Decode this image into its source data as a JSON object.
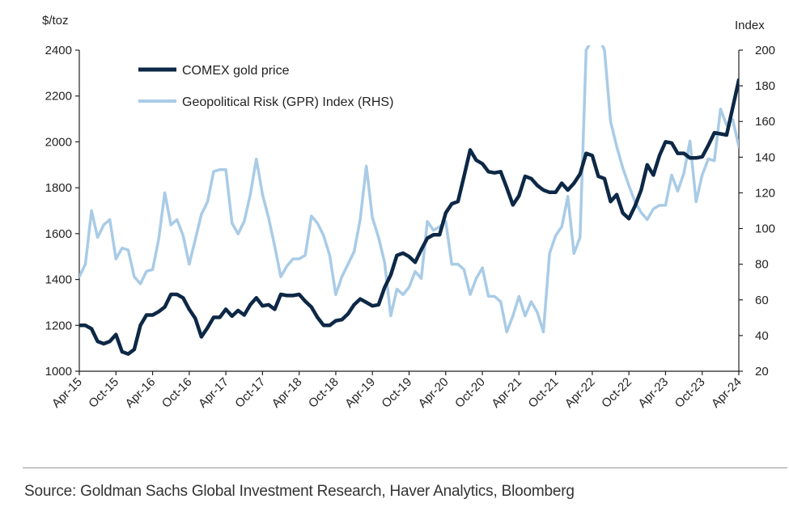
{
  "chart_data": {
    "type": "line",
    "left_axis": {
      "unit_label": "$/toz",
      "min": 1000,
      "max": 2400,
      "ticks": [
        1000,
        1200,
        1400,
        1600,
        1800,
        2000,
        2200,
        2400
      ]
    },
    "right_axis": {
      "unit_label": "Index",
      "min": 20,
      "max": 200,
      "ticks": [
        20,
        40,
        60,
        80,
        100,
        120,
        140,
        160,
        180,
        200
      ]
    },
    "x_range": [
      "2015-04",
      "2024-04"
    ],
    "x_tick_labels": [
      "Apr-15",
      "Oct-15",
      "Apr-16",
      "Oct-16",
      "Apr-17",
      "Oct-17",
      "Apr-18",
      "Oct-18",
      "Apr-19",
      "Oct-19",
      "Apr-20",
      "Oct-20",
      "Apr-21",
      "Oct-21",
      "Apr-22",
      "Oct-22",
      "Apr-23",
      "Oct-23",
      "Apr-24"
    ],
    "legend_position": "top-left",
    "grid": false,
    "series": [
      {
        "name": "COMEX gold price",
        "axis": "left",
        "color": "#0d2846",
        "points": [
          [
            "2015-04",
            1200
          ],
          [
            "2015-05",
            1200
          ],
          [
            "2015-06",
            1185
          ],
          [
            "2015-07",
            1130
          ],
          [
            "2015-08",
            1120
          ],
          [
            "2015-09",
            1130
          ],
          [
            "2015-10",
            1160
          ],
          [
            "2015-11",
            1085
          ],
          [
            "2015-12",
            1075
          ],
          [
            "2016-01",
            1095
          ],
          [
            "2016-02",
            1200
          ],
          [
            "2016-03",
            1245
          ],
          [
            "2016-04",
            1245
          ],
          [
            "2016-05",
            1260
          ],
          [
            "2016-06",
            1280
          ],
          [
            "2016-07",
            1335
          ],
          [
            "2016-08",
            1335
          ],
          [
            "2016-09",
            1320
          ],
          [
            "2016-10",
            1270
          ],
          [
            "2016-11",
            1230
          ],
          [
            "2016-12",
            1150
          ],
          [
            "2017-01",
            1190
          ],
          [
            "2017-02",
            1235
          ],
          [
            "2017-03",
            1235
          ],
          [
            "2017-04",
            1270
          ],
          [
            "2017-05",
            1240
          ],
          [
            "2017-06",
            1265
          ],
          [
            "2017-07",
            1245
          ],
          [
            "2017-08",
            1290
          ],
          [
            "2017-09",
            1320
          ],
          [
            "2017-10",
            1285
          ],
          [
            "2017-11",
            1290
          ],
          [
            "2017-12",
            1270
          ],
          [
            "2018-01",
            1335
          ],
          [
            "2018-02",
            1330
          ],
          [
            "2018-03",
            1330
          ],
          [
            "2018-04",
            1335
          ],
          [
            "2018-05",
            1305
          ],
          [
            "2018-06",
            1280
          ],
          [
            "2018-07",
            1235
          ],
          [
            "2018-08",
            1200
          ],
          [
            "2018-09",
            1200
          ],
          [
            "2018-10",
            1220
          ],
          [
            "2018-11",
            1225
          ],
          [
            "2018-12",
            1250
          ],
          [
            "2019-01",
            1290
          ],
          [
            "2019-02",
            1315
          ],
          [
            "2019-03",
            1300
          ],
          [
            "2019-04",
            1285
          ],
          [
            "2019-05",
            1290
          ],
          [
            "2019-06",
            1365
          ],
          [
            "2019-07",
            1420
          ],
          [
            "2019-08",
            1505
          ],
          [
            "2019-09",
            1515
          ],
          [
            "2019-10",
            1500
          ],
          [
            "2019-11",
            1475
          ],
          [
            "2019-12",
            1530
          ],
          [
            "2020-01",
            1580
          ],
          [
            "2020-02",
            1595
          ],
          [
            "2020-03",
            1595
          ],
          [
            "2020-04",
            1690
          ],
          [
            "2020-05",
            1730
          ],
          [
            "2020-06",
            1740
          ],
          [
            "2020-07",
            1850
          ],
          [
            "2020-08",
            1965
          ],
          [
            "2020-09",
            1920
          ],
          [
            "2020-10",
            1905
          ],
          [
            "2020-11",
            1870
          ],
          [
            "2020-12",
            1865
          ],
          [
            "2021-01",
            1870
          ],
          [
            "2021-02",
            1800
          ],
          [
            "2021-03",
            1725
          ],
          [
            "2021-04",
            1765
          ],
          [
            "2021-05",
            1850
          ],
          [
            "2021-06",
            1840
          ],
          [
            "2021-07",
            1810
          ],
          [
            "2021-08",
            1790
          ],
          [
            "2021-09",
            1780
          ],
          [
            "2021-10",
            1780
          ],
          [
            "2021-11",
            1820
          ],
          [
            "2021-12",
            1790
          ],
          [
            "2022-01",
            1820
          ],
          [
            "2022-02",
            1860
          ],
          [
            "2022-03",
            1950
          ],
          [
            "2022-04",
            1940
          ],
          [
            "2022-05",
            1850
          ],
          [
            "2022-06",
            1840
          ],
          [
            "2022-07",
            1740
          ],
          [
            "2022-08",
            1770
          ],
          [
            "2022-09",
            1690
          ],
          [
            "2022-10",
            1665
          ],
          [
            "2022-11",
            1720
          ],
          [
            "2022-12",
            1790
          ],
          [
            "2023-01",
            1900
          ],
          [
            "2023-02",
            1855
          ],
          [
            "2023-03",
            1940
          ],
          [
            "2023-04",
            2000
          ],
          [
            "2023-05",
            1995
          ],
          [
            "2023-06",
            1950
          ],
          [
            "2023-07",
            1950
          ],
          [
            "2023-08",
            1930
          ],
          [
            "2023-09",
            1930
          ],
          [
            "2023-10",
            1935
          ],
          [
            "2023-11",
            1985
          ],
          [
            "2023-12",
            2040
          ],
          [
            "2024-01",
            2035
          ],
          [
            "2024-02",
            2030
          ],
          [
            "2024-03",
            2150
          ],
          [
            "2024-04",
            2270
          ]
        ]
      },
      {
        "name": "Geopolitical Risk (GPR) Index (RHS)",
        "axis": "right",
        "color": "#a9cbe6",
        "points": [
          [
            "2015-04",
            73
          ],
          [
            "2015-05",
            80
          ],
          [
            "2015-06",
            110
          ],
          [
            "2015-07",
            95
          ],
          [
            "2015-08",
            102
          ],
          [
            "2015-09",
            105
          ],
          [
            "2015-10",
            83
          ],
          [
            "2015-11",
            89
          ],
          [
            "2015-12",
            88
          ],
          [
            "2016-01",
            73
          ],
          [
            "2016-02",
            69
          ],
          [
            "2016-03",
            76
          ],
          [
            "2016-04",
            77
          ],
          [
            "2016-05",
            94
          ],
          [
            "2016-06",
            120
          ],
          [
            "2016-07",
            102
          ],
          [
            "2016-08",
            105
          ],
          [
            "2016-09",
            96
          ],
          [
            "2016-10",
            80
          ],
          [
            "2016-11",
            94
          ],
          [
            "2016-12",
            108
          ],
          [
            "2017-01",
            115
          ],
          [
            "2017-02",
            132
          ],
          [
            "2017-03",
            133
          ],
          [
            "2017-04",
            133
          ],
          [
            "2017-05",
            103
          ],
          [
            "2017-06",
            97
          ],
          [
            "2017-07",
            104
          ],
          [
            "2017-08",
            119
          ],
          [
            "2017-09",
            139
          ],
          [
            "2017-10",
            119
          ],
          [
            "2017-11",
            106
          ],
          [
            "2017-12",
            90
          ],
          [
            "2018-01",
            73
          ],
          [
            "2018-02",
            79
          ],
          [
            "2018-03",
            83
          ],
          [
            "2018-04",
            83
          ],
          [
            "2018-05",
            85
          ],
          [
            "2018-06",
            107
          ],
          [
            "2018-07",
            103
          ],
          [
            "2018-08",
            96
          ],
          [
            "2018-09",
            85
          ],
          [
            "2018-10",
            63
          ],
          [
            "2018-11",
            73
          ],
          [
            "2018-12",
            80
          ],
          [
            "2019-01",
            87
          ],
          [
            "2019-02",
            105
          ],
          [
            "2019-03",
            135
          ],
          [
            "2019-04",
            106
          ],
          [
            "2019-05",
            95
          ],
          [
            "2019-06",
            81
          ],
          [
            "2019-07",
            51
          ],
          [
            "2019-08",
            66
          ],
          [
            "2019-09",
            63
          ],
          [
            "2019-10",
            67
          ],
          [
            "2019-11",
            76
          ],
          [
            "2019-12",
            72
          ],
          [
            "2020-01",
            104
          ],
          [
            "2020-02",
            99
          ],
          [
            "2020-03",
            101
          ],
          [
            "2020-04",
            104
          ],
          [
            "2020-05",
            80
          ],
          [
            "2020-06",
            80
          ],
          [
            "2020-07",
            77
          ],
          [
            "2020-08",
            63
          ],
          [
            "2020-09",
            72
          ],
          [
            "2020-10",
            78
          ],
          [
            "2020-11",
            62
          ],
          [
            "2020-12",
            62
          ],
          [
            "2021-01",
            59
          ],
          [
            "2021-02",
            42
          ],
          [
            "2021-03",
            51
          ],
          [
            "2021-04",
            62
          ],
          [
            "2021-05",
            51
          ],
          [
            "2021-06",
            59
          ],
          [
            "2021-07",
            53
          ],
          [
            "2021-08",
            42
          ],
          [
            "2021-09",
            86
          ],
          [
            "2021-10",
            96
          ],
          [
            "2021-11",
            101
          ],
          [
            "2021-12",
            118
          ],
          [
            "2022-01",
            86
          ],
          [
            "2022-02",
            95
          ],
          [
            "2022-03",
            200
          ],
          [
            "2022-04",
            206
          ],
          [
            "2022-05",
            208
          ],
          [
            "2022-06",
            200
          ],
          [
            "2022-07",
            160
          ],
          [
            "2022-08",
            146
          ],
          [
            "2022-09",
            134
          ],
          [
            "2022-10",
            124
          ],
          [
            "2022-11",
            115
          ],
          [
            "2022-12",
            109
          ],
          [
            "2023-01",
            105
          ],
          [
            "2023-02",
            111
          ],
          [
            "2023-03",
            113
          ],
          [
            "2023-04",
            113
          ],
          [
            "2023-05",
            130
          ],
          [
            "2023-06",
            121
          ],
          [
            "2023-07",
            131
          ],
          [
            "2023-08",
            149
          ],
          [
            "2023-09",
            115
          ],
          [
            "2023-10",
            130
          ],
          [
            "2023-11",
            139
          ],
          [
            "2023-12",
            138
          ],
          [
            "2024-01",
            167
          ],
          [
            "2024-02",
            158
          ],
          [
            "2024-03",
            161
          ],
          [
            "2024-04",
            146
          ]
        ]
      }
    ]
  },
  "source": "Source: Goldman Sachs Global Investment Research, Haver Analytics, Bloomberg"
}
